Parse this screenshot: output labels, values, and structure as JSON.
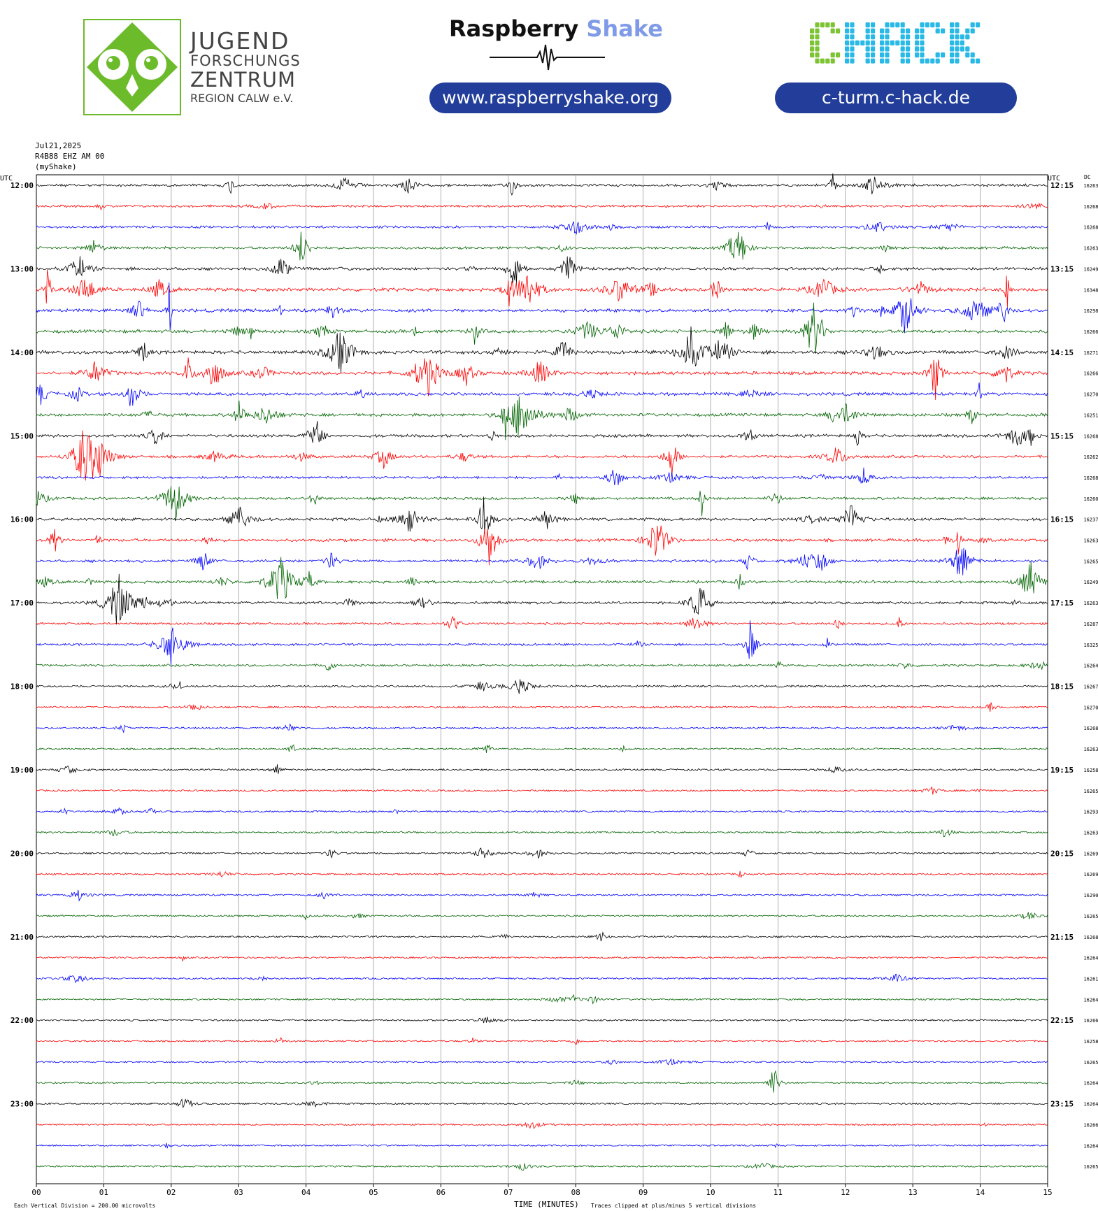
{
  "header": {
    "jfz": {
      "line1": "JUGEND",
      "line2": "FORSCHUNGS",
      "line3": "ZENTRUM",
      "line4": "REGION CALW e.V.",
      "color": "#6cbb2b"
    },
    "raspberry_shake": {
      "title_a": "Raspberry",
      "title_b": "Shake",
      "url": "www.raspberryshake.org"
    },
    "chack": {
      "logo": "CHACK",
      "url": "c-turm.c-hack.de",
      "color_green": "#7dc434",
      "color_cyan": "#29b9e6"
    }
  },
  "chart_data": {
    "type": "line",
    "title": "Jul21,2025",
    "station": "R4B88 EHZ AM 00",
    "network": "(myShake)",
    "xlabel": "TIME (MINUTES)",
    "left_axis_label": "UTC",
    "right_axis_label": "UTC",
    "dc_label": "DC",
    "x_ticks": [
      "00",
      "01",
      "02",
      "03",
      "04",
      "05",
      "06",
      "07",
      "08",
      "09",
      "10",
      "11",
      "12",
      "13",
      "14",
      "15"
    ],
    "xlim": [
      0,
      15
    ],
    "grid": true,
    "trace_colors": [
      "#000000",
      "#ff0000",
      "#0000ff",
      "#006400"
    ],
    "footer_left": "Each Vertical Division =  200.00 microvolts",
    "footer_right": "Traces clipped at plus/minus 5 vertical divisions",
    "left_time_labels": [
      "12:00",
      "13:00",
      "14:00",
      "15:00",
      "16:00",
      "17:00",
      "18:00",
      "19:00",
      "20:00",
      "21:00",
      "22:00",
      "23:00"
    ],
    "right_time_labels": [
      "12:15",
      "13:15",
      "14:15",
      "15:15",
      "16:15",
      "17:15",
      "18:15",
      "19:15",
      "20:15",
      "21:15",
      "22:15",
      "23:15"
    ],
    "dc_values": [
      "16263",
      "16268",
      "16268",
      "16263",
      "16249",
      "16348",
      "16298",
      "16266",
      "16271",
      "16266",
      "16270",
      "16251",
      "16268",
      "16262",
      "16268",
      "16260",
      "16237",
      "16263",
      "16265",
      "16249",
      "16263",
      "16287",
      "16325",
      "16264",
      "16267",
      "16270",
      "16268",
      "16263",
      "16258",
      "16265",
      "16293",
      "16263",
      "16269",
      "16269",
      "16290",
      "16265",
      "16268",
      "16264",
      "16261",
      "16264",
      "16266",
      "16258",
      "16265",
      "16264",
      "16264",
      "16266",
      "16264",
      "16265"
    ],
    "activity": [
      0.35,
      0.3,
      0.3,
      0.35,
      0.45,
      0.6,
      0.55,
      0.55,
      0.6,
      0.6,
      0.5,
      0.5,
      0.45,
      0.35,
      0.3,
      0.35,
      0.45,
      0.45,
      0.4,
      0.4,
      0.35,
      0.25,
      0.25,
      0.25,
      0.2,
      0.15,
      0.12,
      0.12,
      0.12,
      0.1,
      0.1,
      0.1,
      0.12,
      0.1,
      0.12,
      0.1,
      0.1,
      0.08,
      0.06,
      0.06,
      0.07,
      0.05,
      0.05,
      0.06,
      0.07,
      0.05,
      0.05,
      0.05
    ]
  }
}
